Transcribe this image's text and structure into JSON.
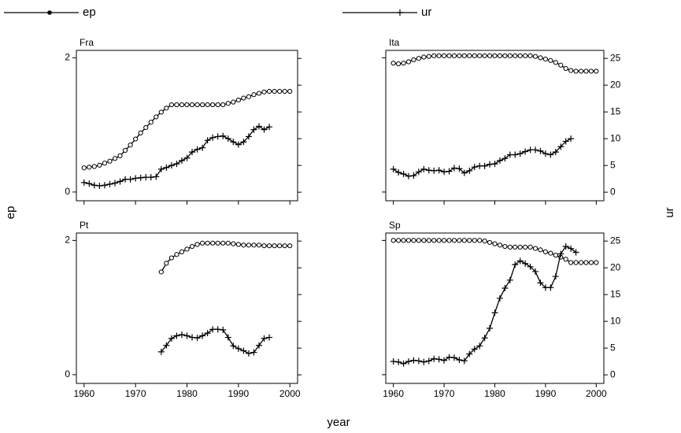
{
  "chart_data": {
    "type": "line",
    "xlabel": "year",
    "ylabel": "ep",
    "y2label": "ur",
    "xlim": [
      1958.5,
      2001.5
    ],
    "xticks": [
      1960,
      1970,
      1980,
      1990,
      2000
    ],
    "ylim": [
      -0.13,
      2.11
    ],
    "yticks": [
      0,
      2
    ],
    "y2lim": [
      -1.6,
      26.5
    ],
    "y2ticks": [
      0,
      5,
      10,
      15,
      20,
      25
    ],
    "panels": [
      {
        "title": "Fra",
        "series": [
          {
            "name": "ep",
            "color": "#000000",
            "marker": "circle",
            "x": [
              1960,
              1961,
              1962,
              1963,
              1964,
              1965,
              1966,
              1967,
              1968,
              1969,
              1970,
              1971,
              1972,
              1973,
              1974,
              1975,
              1976,
              1977,
              1978,
              1979,
              1980,
              1981,
              1982,
              1983,
              1984,
              1985,
              1986,
              1987,
              1988,
              1989,
              1990,
              1991,
              1992,
              1993,
              1994,
              1995,
              1996,
              1997,
              1998,
              1999,
              2000
            ],
            "values": [
              0.36,
              0.37,
              0.38,
              0.4,
              0.43,
              0.46,
              0.5,
              0.54,
              0.62,
              0.7,
              0.79,
              0.88,
              0.96,
              1.04,
              1.12,
              1.19,
              1.25,
              1.3,
              1.3,
              1.3,
              1.3,
              1.3,
              1.3,
              1.3,
              1.3,
              1.3,
              1.3,
              1.3,
              1.32,
              1.34,
              1.37,
              1.4,
              1.42,
              1.45,
              1.47,
              1.49,
              1.5,
              1.5,
              1.5,
              1.5,
              1.5
            ]
          },
          {
            "name": "ur",
            "color": "#000000",
            "marker": "plus",
            "axis": "y2",
            "x": [
              1960,
              1961,
              1962,
              1963,
              1964,
              1965,
              1966,
              1967,
              1968,
              1969,
              1970,
              1971,
              1972,
              1973,
              1974,
              1975,
              1976,
              1977,
              1978,
              1979,
              1980,
              1981,
              1982,
              1983,
              1984,
              1985,
              1986,
              1987,
              1988,
              1989,
              1990,
              1991,
              1992,
              1993,
              1994,
              1995,
              1996
            ],
            "values": [
              1.8,
              1.6,
              1.3,
              1.2,
              1.3,
              1.5,
              1.7,
              2.0,
              2.4,
              2.4,
              2.6,
              2.7,
              2.8,
              2.8,
              2.9,
              4.3,
              4.6,
              5.0,
              5.3,
              5.9,
              6.4,
              7.5,
              8.0,
              8.3,
              9.7,
              10.2,
              10.4,
              10.5,
              10.0,
              9.4,
              8.9,
              9.4,
              10.4,
              11.7,
              12.3,
              11.7,
              12.2
            ]
          }
        ]
      },
      {
        "title": "Ita",
        "series": [
          {
            "name": "ep",
            "color": "#000000",
            "marker": "circle",
            "x": [
              1960,
              1961,
              1962,
              1963,
              1964,
              1965,
              1966,
              1967,
              1968,
              1969,
              1970,
              1971,
              1972,
              1973,
              1974,
              1975,
              1976,
              1977,
              1978,
              1979,
              1980,
              1981,
              1982,
              1983,
              1984,
              1985,
              1986,
              1987,
              1988,
              1989,
              1990,
              1991,
              1992,
              1993,
              1994,
              1995,
              1996,
              1997,
              1998,
              1999,
              2000
            ],
            "values": [
              1.92,
              1.91,
              1.92,
              1.94,
              1.97,
              1.99,
              2.01,
              2.02,
              2.03,
              2.03,
              2.03,
              2.03,
              2.03,
              2.03,
              2.03,
              2.03,
              2.03,
              2.03,
              2.03,
              2.03,
              2.03,
              2.03,
              2.03,
              2.03,
              2.03,
              2.03,
              2.03,
              2.03,
              2.02,
              2.0,
              1.98,
              1.96,
              1.93,
              1.89,
              1.84,
              1.81,
              1.8,
              1.8,
              1.8,
              1.8,
              1.8
            ]
          },
          {
            "name": "ur",
            "color": "#000000",
            "marker": "plus",
            "axis": "y2",
            "x": [
              1960,
              1961,
              1962,
              1963,
              1964,
              1965,
              1966,
              1967,
              1968,
              1969,
              1970,
              1971,
              1972,
              1973,
              1974,
              1975,
              1976,
              1977,
              1978,
              1979,
              1980,
              1981,
              1982,
              1983,
              1984,
              1985,
              1986,
              1987,
              1988,
              1989,
              1990,
              1991,
              1992,
              1993,
              1994,
              1995
            ],
            "values": [
              4.3,
              3.7,
              3.4,
              3.0,
              3.1,
              3.8,
              4.3,
              4.1,
              4.0,
              4.1,
              3.8,
              3.9,
              4.5,
              4.4,
              3.6,
              4.0,
              4.7,
              4.9,
              4.9,
              5.2,
              5.3,
              5.9,
              6.3,
              7.0,
              7.0,
              7.2,
              7.6,
              7.9,
              7.9,
              7.7,
              7.2,
              7.0,
              7.5,
              8.5,
              9.5,
              10.0
            ]
          }
        ]
      },
      {
        "title": "Pt",
        "series": [
          {
            "name": "ep",
            "color": "#000000",
            "marker": "circle",
            "x": [
              1975,
              1976,
              1977,
              1978,
              1979,
              1980,
              1981,
              1982,
              1983,
              1984,
              1985,
              1986,
              1987,
              1988,
              1989,
              1990,
              1991,
              1992,
              1993,
              1994,
              1995,
              1996,
              1997,
              1998,
              1999,
              2000
            ],
            "values": [
              1.53,
              1.66,
              1.74,
              1.79,
              1.83,
              1.87,
              1.91,
              1.94,
              1.96,
              1.96,
              1.96,
              1.96,
              1.96,
              1.96,
              1.95,
              1.94,
              1.93,
              1.93,
              1.93,
              1.93,
              1.92,
              1.92,
              1.92,
              1.92,
              1.92,
              1.92
            ]
          },
          {
            "name": "ur",
            "color": "#000000",
            "marker": "plus",
            "axis": "y2",
            "x": [
              1975,
              1976,
              1977,
              1978,
              1979,
              1980,
              1981,
              1982,
              1983,
              1984,
              1985,
              1986,
              1987,
              1988,
              1989,
              1990,
              1991,
              1992,
              1993,
              1994,
              1995,
              1996
            ],
            "values": [
              4.3,
              5.5,
              6.8,
              7.3,
              7.5,
              7.3,
              7.0,
              6.9,
              7.3,
              7.8,
              8.5,
              8.5,
              8.4,
              7.0,
              5.4,
              4.9,
              4.5,
              4.0,
              4.2,
              5.5,
              6.8,
              7.0
            ]
          }
        ]
      },
      {
        "title": "Sp",
        "series": [
          {
            "name": "ep",
            "color": "#000000",
            "marker": "circle",
            "x": [
              1960,
              1961,
              1962,
              1963,
              1964,
              1965,
              1966,
              1967,
              1968,
              1969,
              1970,
              1971,
              1972,
              1973,
              1974,
              1975,
              1976,
              1977,
              1978,
              1979,
              1980,
              1981,
              1982,
              1983,
              1984,
              1985,
              1986,
              1987,
              1988,
              1989,
              1990,
              1991,
              1992,
              1993,
              1994,
              1995,
              1996,
              1997,
              1998,
              1999,
              2000
            ],
            "values": [
              2.0,
              2.0,
              2.0,
              2.0,
              2.0,
              2.0,
              2.0,
              2.0,
              2.0,
              2.0,
              2.0,
              2.0,
              2.0,
              2.0,
              2.0,
              2.0,
              2.0,
              2.0,
              1.99,
              1.97,
              1.95,
              1.93,
              1.91,
              1.9,
              1.9,
              1.9,
              1.9,
              1.9,
              1.88,
              1.86,
              1.83,
              1.81,
              1.78,
              1.75,
              1.72,
              1.67,
              1.67,
              1.67,
              1.67,
              1.67,
              1.67
            ]
          },
          {
            "name": "ur",
            "color": "#000000",
            "marker": "plus",
            "axis": "y2",
            "x": [
              1960,
              1961,
              1962,
              1963,
              1964,
              1965,
              1966,
              1967,
              1968,
              1969,
              1970,
              1971,
              1972,
              1973,
              1974,
              1975,
              1976,
              1977,
              1978,
              1979,
              1980,
              1981,
              1982,
              1983,
              1984,
              1985,
              1986,
              1987,
              1988,
              1989,
              1990,
              1991,
              1992,
              1993,
              1994,
              1995,
              1996
            ],
            "values": [
              2.5,
              2.4,
              2.1,
              2.5,
              2.7,
              2.6,
              2.4,
              2.6,
              3.0,
              2.9,
              2.7,
              3.3,
              3.2,
              2.8,
              2.6,
              3.9,
              4.8,
              5.4,
              6.9,
              8.7,
              11.6,
              14.3,
              16.2,
              17.7,
              20.6,
              21.3,
              20.8,
              20.2,
              19.3,
              17.2,
              16.3,
              16.3,
              18.4,
              22.6,
              24.0,
              23.6,
              22.9
            ]
          }
        ]
      }
    ]
  }
}
